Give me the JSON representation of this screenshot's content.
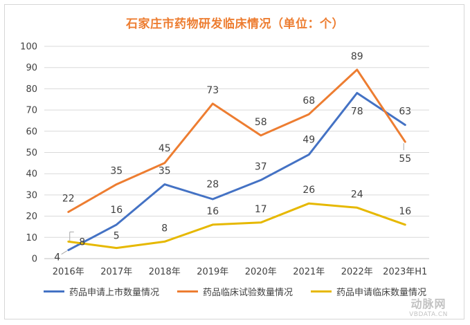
{
  "chart_data": {
    "type": "line",
    "title": "石家庄市药物研发临床情况（单位：个）",
    "categories": [
      "2016年",
      "2017年",
      "2018年",
      "2019年",
      "2020年",
      "2021年",
      "2022年",
      "2023年H1"
    ],
    "ylim": [
      0,
      100
    ],
    "yticks": [
      0,
      10,
      20,
      30,
      40,
      50,
      60,
      70,
      80,
      90,
      100
    ],
    "grid": true,
    "legend_position": "bottom",
    "series": [
      {
        "name": "药品申请上市数量情况",
        "color": "#4472c4",
        "values": [
          4,
          16,
          35,
          28,
          37,
          49,
          78,
          63
        ]
      },
      {
        "name": "药品临床试验数量情况",
        "color": "#ed7d31",
        "values": [
          22,
          35,
          45,
          73,
          58,
          68,
          89,
          55
        ]
      },
      {
        "name": "药品申请临床数量情况",
        "color": "#e6b800",
        "values": [
          8,
          5,
          8,
          16,
          17,
          26,
          24,
          16
        ]
      }
    ]
  },
  "watermark": {
    "text_cn": "动脉网",
    "text_en": "VBDATA.CN"
  }
}
